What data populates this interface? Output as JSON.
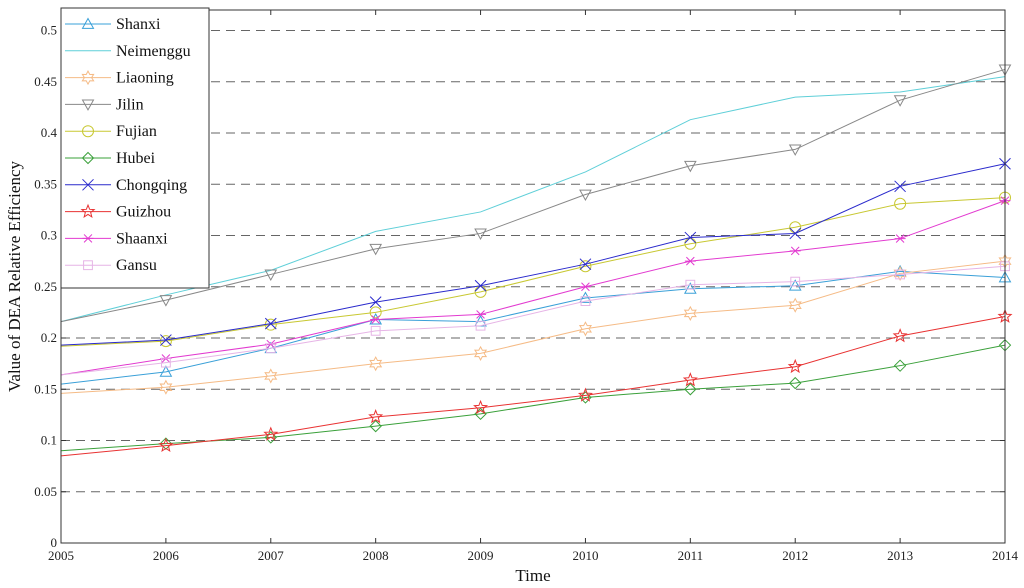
{
  "chart_data": {
    "type": "line",
    "xlabel": "Time",
    "ylabel": "Value of DEA Relative Efficiency",
    "xlim": [
      2005,
      2014
    ],
    "ylim": [
      0,
      0.52
    ],
    "xticks": [
      2005,
      2006,
      2007,
      2008,
      2009,
      2010,
      2011,
      2012,
      2013,
      2014
    ],
    "yticks": [
      0,
      0.05,
      0.1,
      0.15,
      0.2,
      0.25,
      0.3,
      0.35,
      0.4,
      0.45,
      0.5
    ],
    "ytick_labels": [
      "0",
      "0.05",
      "0.1",
      "0.15",
      "0.2",
      "0.25",
      "0.3",
      "0.35",
      "0.4",
      "0.45",
      "0.5"
    ],
    "grid": "horizontal dashed",
    "legend_position": "top-left",
    "x": [
      2005,
      2006,
      2007,
      2008,
      2009,
      2010,
      2011,
      2012,
      2013,
      2014
    ],
    "series": [
      {
        "name": "Shanxi",
        "color": "#3aa0d8",
        "marker": "triangle-up",
        "values": [
          0.155,
          0.167,
          0.19,
          0.218,
          0.216,
          0.239,
          0.248,
          0.251,
          0.265,
          0.259
        ]
      },
      {
        "name": "Neimenggu",
        "color": "#5fcfd8",
        "marker": "none",
        "values": [
          0.216,
          0.242,
          0.266,
          0.304,
          0.323,
          0.362,
          0.413,
          0.435,
          0.44,
          0.455
        ]
      },
      {
        "name": "Liaoning",
        "color": "#f5bb86",
        "marker": "hexagram",
        "values": [
          0.146,
          0.152,
          0.163,
          0.175,
          0.185,
          0.209,
          0.224,
          0.232,
          0.263,
          0.275
        ]
      },
      {
        "name": "Jilin",
        "color": "#888888",
        "marker": "triangle-down",
        "values": [
          0.216,
          0.237,
          0.262,
          0.287,
          0.302,
          0.34,
          0.368,
          0.384,
          0.432,
          0.462
        ]
      },
      {
        "name": "Fujian",
        "color": "#c8c832",
        "marker": "circle",
        "values": [
          0.192,
          0.197,
          0.213,
          0.225,
          0.245,
          0.27,
          0.292,
          0.308,
          0.331,
          0.337
        ]
      },
      {
        "name": "Hubei",
        "color": "#3aa03a",
        "marker": "diamond",
        "values": [
          0.09,
          0.097,
          0.103,
          0.114,
          0.126,
          0.142,
          0.15,
          0.156,
          0.173,
          0.193
        ]
      },
      {
        "name": "Chongqing",
        "color": "#2a2acc",
        "marker": "x",
        "values": [
          0.193,
          0.198,
          0.214,
          0.235,
          0.251,
          0.272,
          0.298,
          0.302,
          0.348,
          0.37
        ]
      },
      {
        "name": "Guizhou",
        "color": "#e83232",
        "marker": "pentagram",
        "values": [
          0.085,
          0.095,
          0.106,
          0.123,
          0.132,
          0.144,
          0.159,
          0.172,
          0.202,
          0.221
        ]
      },
      {
        "name": "Shaanxi",
        "color": "#e23ad0",
        "marker": "asterisk",
        "values": [
          0.164,
          0.18,
          0.194,
          0.218,
          0.223,
          0.25,
          0.275,
          0.285,
          0.297,
          0.334
        ]
      },
      {
        "name": "Gansu",
        "color": "#e6b4e6",
        "marker": "square",
        "values": [
          0.164,
          0.176,
          0.19,
          0.207,
          0.212,
          0.236,
          0.252,
          0.255,
          0.262,
          0.27
        ]
      }
    ]
  }
}
